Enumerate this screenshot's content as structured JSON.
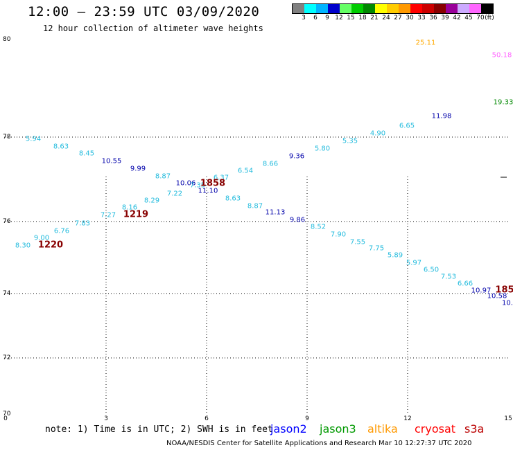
{
  "header": {
    "title": "12:00 – 23:59 UTC 03/09/2020",
    "subtitle": "12 hour collection of altimeter wave heights"
  },
  "scale": {
    "unit": "(ft)",
    "bins": [
      {
        "label": "3",
        "color": "#808080"
      },
      {
        "label": "6",
        "color": "#00ffff"
      },
      {
        "label": "9",
        "color": "#00b4ff"
      },
      {
        "label": "12",
        "color": "#0000cc"
      },
      {
        "label": "15",
        "color": "#66ff66"
      },
      {
        "label": "18",
        "color": "#00cc00"
      },
      {
        "label": "21",
        "color": "#008800"
      },
      {
        "label": "24",
        "color": "#ffff00"
      },
      {
        "label": "27",
        "color": "#ffcc00"
      },
      {
        "label": "30",
        "color": "#ff9900"
      },
      {
        "label": "33",
        "color": "#ff0000"
      },
      {
        "label": "36",
        "color": "#cc0000"
      },
      {
        "label": "39",
        "color": "#880000"
      },
      {
        "label": "42",
        "color": "#990099"
      },
      {
        "label": "45",
        "color": "#ccaaff"
      },
      {
        "label": "70",
        "color": "#ff66ff"
      },
      {
        "label": "",
        "color": "#000000"
      }
    ]
  },
  "axes": {
    "lat_labels": [
      "80",
      "78",
      "76",
      "74",
      "72",
      "70"
    ],
    "lon_labels": [
      "0",
      "3",
      "6",
      "9",
      "12",
      "15"
    ]
  },
  "observations": [
    {
      "v": "5.94",
      "c": "#22bbdd"
    },
    {
      "v": "8.63",
      "c": "#22bbdd"
    },
    {
      "v": "8.45",
      "c": "#22bbdd"
    },
    {
      "v": "10.55",
      "c": "#0000aa"
    },
    {
      "v": "9.99",
      "c": "#0000aa"
    },
    {
      "v": "8.87",
      "c": "#22bbdd"
    },
    {
      "v": "10.06",
      "c": "#0000aa"
    },
    {
      "v": "7.35",
      "c": "#22bbdd"
    },
    {
      "v": "6.37",
      "c": "#22bbdd"
    },
    {
      "v": "11.10",
      "c": "#0000aa"
    },
    {
      "v": "6.54",
      "c": "#22bbdd"
    },
    {
      "v": "8.66",
      "c": "#22bbdd"
    },
    {
      "v": "9.36",
      "c": "#0000aa"
    },
    {
      "v": "5.80",
      "c": "#22bbdd"
    },
    {
      "v": "5.35",
      "c": "#22bbdd"
    },
    {
      "v": "4.90",
      "c": "#22bbdd"
    },
    {
      "v": "6.65",
      "c": "#22bbdd"
    },
    {
      "v": "11.98",
      "c": "#0000aa"
    },
    {
      "v": "25.11",
      "c": "#ffaa00"
    },
    {
      "v": "50.18",
      "c": "#ff66ff"
    },
    {
      "v": "19.33",
      "c": "#008800"
    },
    {
      "v": "7.22",
      "c": "#22bbdd"
    },
    {
      "v": "8.29",
      "c": "#22bbdd"
    },
    {
      "v": "8.16",
      "c": "#22bbdd"
    },
    {
      "v": "7.27",
      "c": "#22bbdd"
    },
    {
      "v": "7.83",
      "c": "#22bbdd"
    },
    {
      "v": "6.76",
      "c": "#22bbdd"
    },
    {
      "v": "9.00",
      "c": "#22bbdd"
    },
    {
      "v": "8.30",
      "c": "#22bbdd"
    },
    {
      "v": "8.63",
      "c": "#22bbdd"
    },
    {
      "v": "8.87",
      "c": "#22bbdd"
    },
    {
      "v": "11.13",
      "c": "#0000aa"
    },
    {
      "v": "9.86",
      "c": "#0000aa"
    },
    {
      "v": "8.52",
      "c": "#22bbdd"
    },
    {
      "v": "7.90",
      "c": "#22bbdd"
    },
    {
      "v": "7.55",
      "c": "#22bbdd"
    },
    {
      "v": "7.75",
      "c": "#22bbdd"
    },
    {
      "v": "5.89",
      "c": "#22bbdd"
    },
    {
      "v": "5.97",
      "c": "#22bbdd"
    },
    {
      "v": "6.50",
      "c": "#22bbdd"
    },
    {
      "v": "7.53",
      "c": "#22bbdd"
    },
    {
      "v": "6.66",
      "c": "#22bbdd"
    },
    {
      "v": "10.97",
      "c": "#0000aa"
    },
    {
      "v": "10.58",
      "c": "#0000aa"
    },
    {
      "v": "10.",
      "c": "#0000aa"
    }
  ],
  "pass_times": [
    {
      "v": "1858",
      "c": "#880000"
    },
    {
      "v": "1219",
      "c": "#880000"
    },
    {
      "v": "1220",
      "c": "#880000"
    },
    {
      "v": "185",
      "c": "#880000"
    }
  ],
  "footer": {
    "note": "note: 1) Time is in UTC; 2) SWH is in feet",
    "satellites": [
      {
        "name": "jason2",
        "color": "#0000ff"
      },
      {
        "name": "jason3",
        "color": "#009900"
      },
      {
        "name": "altika",
        "color": "#ff9900"
      },
      {
        "name": "cryosat",
        "color": "#ff0000"
      },
      {
        "name": "s3a",
        "color": "#bb0000"
      }
    ],
    "credit": "NOAA/NESDIS Center for Satellite Applications and Research   Mar 10 12:27:37 UTC 2020"
  }
}
